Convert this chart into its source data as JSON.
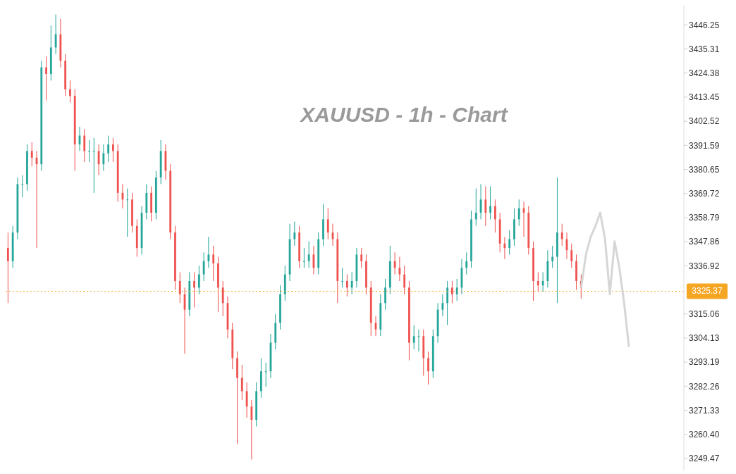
{
  "chart_data": {
    "type": "candlestick",
    "title": "XAUUSD - 1h - Chart",
    "tick_labels": "y",
    "categories": [
      null,
      null,
      null,
      null,
      null,
      null,
      null,
      null,
      null,
      null,
      null,
      null,
      null,
      null,
      null,
      null,
      null,
      null,
      null,
      null,
      null,
      null,
      null,
      null,
      null,
      null,
      null,
      null,
      null,
      null,
      null,
      null,
      null,
      null,
      null,
      null,
      null,
      null,
      null,
      null,
      null,
      null,
      null,
      null,
      null,
      null,
      null,
      null,
      null,
      null,
      null,
      null,
      null,
      null,
      null,
      null,
      null,
      null,
      null,
      null,
      null,
      null,
      null,
      null,
      null,
      null,
      null,
      null,
      null,
      null,
      null,
      null,
      null,
      null,
      null,
      null,
      null,
      null,
      null,
      null,
      null,
      null,
      null,
      null,
      null,
      null,
      null,
      null,
      null,
      null,
      null,
      null,
      null,
      null,
      null,
      null,
      null,
      null,
      null,
      null,
      null,
      null,
      null,
      null,
      null,
      null,
      null,
      null,
      null,
      null,
      null,
      null,
      null,
      null,
      null,
      null,
      null,
      null,
      null,
      null,
      null,
      null,
      null,
      null,
      null,
      null,
      null,
      null,
      null,
      null,
      null,
      null,
      null,
      null,
      null,
      null,
      null,
      null,
      null,
      null,
      null,
      null
    ],
    "series": [
      {
        "type": "candlestick",
        "ohlc": [
          [
            3345,
            3352,
            3320,
            3339
          ],
          [
            3339,
            3355,
            3336,
            3352
          ],
          [
            3352,
            3377,
            3349,
            3374
          ],
          [
            3374,
            3378,
            3368,
            3374
          ],
          [
            3374,
            3392,
            3371,
            3389
          ],
          [
            3389,
            3393,
            3382,
            3386
          ],
          [
            3386,
            3389,
            3345,
            3383
          ],
          [
            3383,
            3430,
            3380,
            3427
          ],
          [
            3427,
            3432,
            3412,
            3424
          ],
          [
            3424,
            3446,
            3421,
            3436
          ],
          [
            3436,
            3451,
            3433,
            3442
          ],
          [
            3442,
            3449,
            3427,
            3430
          ],
          [
            3430,
            3433,
            3414,
            3417
          ],
          [
            3417,
            3421,
            3411,
            3414
          ],
          [
            3414,
            3417,
            3380,
            3392
          ],
          [
            3392,
            3400,
            3389,
            3396
          ],
          [
            3396,
            3399,
            3384,
            3389
          ],
          [
            3389,
            3394,
            3384,
            3389
          ],
          [
            3389,
            3395,
            3370,
            3389
          ],
          [
            3389,
            3392,
            3378,
            3383
          ],
          [
            3383,
            3392,
            3380,
            3388
          ],
          [
            3388,
            3396,
            3384,
            3392
          ],
          [
            3392,
            3395,
            3384,
            3389
          ],
          [
            3389,
            3392,
            3366,
            3370
          ],
          [
            3370,
            3374,
            3363,
            3367
          ],
          [
            3367,
            3372,
            3350,
            3367
          ],
          [
            3367,
            3370,
            3352,
            3355
          ],
          [
            3355,
            3358,
            3341,
            3345
          ],
          [
            3345,
            3364,
            3342,
            3361
          ],
          [
            3361,
            3374,
            3358,
            3370
          ],
          [
            3370,
            3373,
            3357,
            3361
          ],
          [
            3361,
            3380,
            3358,
            3377
          ],
          [
            3377,
            3394,
            3374,
            3389
          ],
          [
            3389,
            3392,
            3376,
            3380
          ],
          [
            3380,
            3383,
            3349,
            3352
          ],
          [
            3352,
            3355,
            3326,
            3330
          ],
          [
            3330,
            3334,
            3320,
            3324
          ],
          [
            3324,
            3327,
            3297,
            3317
          ],
          [
            3317,
            3334,
            3314,
            3330
          ],
          [
            3330,
            3334,
            3318,
            3327
          ],
          [
            3327,
            3337,
            3324,
            3333
          ],
          [
            3333,
            3343,
            3330,
            3339
          ],
          [
            3339,
            3350,
            3336,
            3342
          ],
          [
            3342,
            3346,
            3330,
            3338
          ],
          [
            3338,
            3341,
            3316,
            3327
          ],
          [
            3327,
            3330,
            3314,
            3320
          ],
          [
            3320,
            3323,
            3304,
            3308
          ],
          [
            3308,
            3311,
            3290,
            3295
          ],
          [
            3295,
            3298,
            3256,
            3286
          ],
          [
            3286,
            3292,
            3276,
            3280
          ],
          [
            3280,
            3284,
            3268,
            3273
          ],
          [
            3273,
            3276,
            3249,
            3267
          ],
          [
            3267,
            3284,
            3264,
            3280
          ],
          [
            3280,
            3295,
            3277,
            3289
          ],
          [
            3289,
            3293,
            3282,
            3289
          ],
          [
            3289,
            3306,
            3286,
            3302
          ],
          [
            3302,
            3315,
            3299,
            3311
          ],
          [
            3311,
            3328,
            3308,
            3324
          ],
          [
            3324,
            3337,
            3321,
            3333
          ],
          [
            3333,
            3356,
            3330,
            3349
          ],
          [
            3349,
            3357,
            3346,
            3352
          ],
          [
            3352,
            3355,
            3336,
            3339
          ],
          [
            3339,
            3345,
            3336,
            3339
          ],
          [
            3339,
            3348,
            3336,
            3342
          ],
          [
            3342,
            3346,
            3333,
            3336
          ],
          [
            3336,
            3352,
            3333,
            3349
          ],
          [
            3349,
            3365,
            3346,
            3358
          ],
          [
            3358,
            3363,
            3349,
            3352
          ],
          [
            3352,
            3356,
            3346,
            3349
          ],
          [
            3349,
            3352,
            3320,
            3330
          ],
          [
            3330,
            3336,
            3327,
            3330
          ],
          [
            3330,
            3333,
            3323,
            3327
          ],
          [
            3327,
            3334,
            3324,
            3330
          ],
          [
            3330,
            3345,
            3327,
            3342
          ],
          [
            3342,
            3345,
            3336,
            3339
          ],
          [
            3339,
            3342,
            3324,
            3327
          ],
          [
            3327,
            3330,
            3305,
            3311
          ],
          [
            3311,
            3314,
            3305,
            3308
          ],
          [
            3308,
            3324,
            3305,
            3320
          ],
          [
            3320,
            3331,
            3317,
            3327
          ],
          [
            3327,
            3346,
            3324,
            3339
          ],
          [
            3339,
            3343,
            3333,
            3336
          ],
          [
            3336,
            3341,
            3330,
            3333
          ],
          [
            3333,
            3337,
            3324,
            3327
          ],
          [
            3327,
            3330,
            3294,
            3302
          ],
          [
            3302,
            3310,
            3299,
            3305
          ],
          [
            3305,
            3308,
            3298,
            3305
          ],
          [
            3305,
            3308,
            3287,
            3295
          ],
          [
            3295,
            3298,
            3283,
            3289
          ],
          [
            3289,
            3308,
            3286,
            3305
          ],
          [
            3305,
            3320,
            3302,
            3317
          ],
          [
            3317,
            3324,
            3314,
            3320
          ],
          [
            3320,
            3330,
            3310,
            3327
          ],
          [
            3327,
            3330,
            3320,
            3324
          ],
          [
            3324,
            3331,
            3321,
            3327
          ],
          [
            3327,
            3340,
            3324,
            3336
          ],
          [
            3336,
            3343,
            3333,
            3339
          ],
          [
            3339,
            3362,
            3336,
            3358
          ],
          [
            3358,
            3372,
            3355,
            3361
          ],
          [
            3361,
            3374,
            3358,
            3367
          ],
          [
            3367,
            3373,
            3355,
            3361
          ],
          [
            3361,
            3373,
            3358,
            3364
          ],
          [
            3364,
            3367,
            3352,
            3358
          ],
          [
            3358,
            3361,
            3343,
            3347
          ],
          [
            3347,
            3350,
            3340,
            3345
          ],
          [
            3345,
            3353,
            3342,
            3349
          ],
          [
            3349,
            3363,
            3346,
            3358
          ],
          [
            3358,
            3367,
            3355,
            3363
          ],
          [
            3363,
            3366,
            3350,
            3361
          ],
          [
            3361,
            3364,
            3342,
            3345
          ],
          [
            3345,
            3348,
            3321,
            3330
          ],
          [
            3330,
            3334,
            3325,
            3328
          ],
          [
            3328,
            3334,
            3325,
            3330
          ],
          [
            3330,
            3344,
            3327,
            3339
          ],
          [
            3339,
            3346,
            3336,
            3341
          ],
          [
            3341,
            3377,
            3320,
            3352
          ],
          [
            3352,
            3356,
            3346,
            3349
          ],
          [
            3349,
            3352,
            3340,
            3344
          ],
          [
            3344,
            3347,
            3336,
            3339
          ],
          [
            3339,
            3342,
            3326,
            3330
          ],
          [
            3330,
            3333,
            3322,
            3327
          ],
          null,
          null,
          null,
          null,
          null,
          null,
          null,
          null,
          null,
          null,
          null,
          null,
          null,
          null,
          null,
          null,
          null,
          null,
          null,
          null,
          null
        ],
        "colors": [
          "#ef5350",
          "#26a69a",
          "#26a69a",
          "#26a69a",
          "#26a69a",
          "#ef5350",
          "#ef5350",
          "#26a69a",
          "#ef5350",
          "#26a69a",
          "#26a69a",
          "#ef5350",
          "#ef5350",
          "#ef5350",
          "#ef5350",
          "#26a69a",
          "#ef5350",
          "#26a69a",
          "#26a69a",
          "#ef5350",
          "#26a69a",
          "#26a69a",
          "#ef5350",
          "#ef5350",
          "#ef5350",
          "#26a69a",
          "#ef5350",
          "#ef5350",
          "#26a69a",
          "#26a69a",
          "#ef5350",
          "#26a69a",
          "#26a69a",
          "#ef5350",
          "#ef5350",
          "#ef5350",
          "#ef5350",
          "#ef5350",
          "#26a69a",
          "#ef5350",
          "#26a69a",
          "#26a69a",
          "#26a69a",
          "#ef5350",
          "#ef5350",
          "#ef5350",
          "#ef5350",
          "#ef5350",
          "#ef5350",
          "#ef5350",
          "#ef5350",
          "#ef5350",
          "#26a69a",
          "#26a69a",
          "#26a69a",
          "#26a69a",
          "#26a69a",
          "#26a69a",
          "#26a69a",
          "#26a69a",
          "#26a69a",
          "#ef5350",
          "#26a69a",
          "#26a69a",
          "#ef5350",
          "#26a69a",
          "#26a69a",
          "#ef5350",
          "#ef5350",
          "#ef5350",
          "#26a69a",
          "#ef5350",
          "#26a69a",
          "#26a69a",
          "#ef5350",
          "#ef5350",
          "#ef5350",
          "#ef5350",
          "#26a69a",
          "#26a69a",
          "#26a69a",
          "#ef5350",
          "#ef5350",
          "#ef5350",
          "#ef5350",
          "#26a69a",
          "#26a69a",
          "#ef5350",
          "#ef5350",
          "#26a69a",
          "#26a69a",
          "#26a69a",
          "#26a69a",
          "#ef5350",
          "#26a69a",
          "#26a69a",
          "#26a69a",
          "#26a69a",
          "#26a69a",
          "#26a69a",
          "#ef5350",
          "#26a69a",
          "#ef5350",
          "#ef5350",
          "#ef5350",
          "#26a69a",
          "#26a69a",
          "#26a69a",
          "#ef5350",
          "#ef5350",
          "#ef5350",
          "#ef5350",
          "#26a69a",
          "#26a69a",
          "#26a69a",
          "#26a69a",
          "#ef5350",
          "#ef5350",
          "#ef5350",
          "#ef5350",
          "#ef5350",
          null,
          null,
          null,
          null,
          null,
          null,
          null,
          null,
          null,
          null,
          null,
          null,
          null,
          null,
          null,
          null,
          null,
          null,
          null,
          null,
          null
        ]
      },
      {
        "type": "line",
        "color": "#d6d6d6",
        "values": [
          null,
          null,
          null,
          null,
          null,
          null,
          null,
          null,
          null,
          null,
          null,
          null,
          null,
          null,
          null,
          null,
          null,
          null,
          null,
          null,
          null,
          null,
          null,
          null,
          null,
          null,
          null,
          null,
          null,
          null,
          null,
          null,
          null,
          null,
          null,
          null,
          null,
          null,
          null,
          null,
          null,
          null,
          null,
          null,
          null,
          null,
          null,
          null,
          null,
          null,
          null,
          null,
          null,
          null,
          null,
          null,
          null,
          null,
          null,
          null,
          null,
          null,
          null,
          null,
          null,
          null,
          null,
          null,
          null,
          null,
          null,
          null,
          null,
          null,
          null,
          null,
          null,
          null,
          null,
          null,
          null,
          null,
          null,
          null,
          null,
          null,
          null,
          null,
          null,
          null,
          null,
          null,
          null,
          null,
          null,
          null,
          null,
          null,
          null,
          null,
          null,
          null,
          null,
          null,
          null,
          null,
          null,
          null,
          null,
          null,
          null,
          null,
          null,
          null,
          null,
          null,
          null,
          null,
          null,
          null,
          3327,
          3342,
          3350,
          3355,
          3361,
          3349,
          3324,
          3348,
          3336,
          3320,
          3300,
          null,
          null,
          null,
          null,
          null,
          null,
          null,
          null,
          null,
          null,
          null
        ]
      }
    ],
    "ylim": [
      3244,
      3455
    ],
    "yticks": [
      3446.25,
      3435.31,
      3424.38,
      3413.45,
      3402.52,
      3391.59,
      3380.65,
      3369.72,
      3358.79,
      3347.86,
      3336.92,
      3315.06,
      3304.13,
      3293.19,
      3282.26,
      3271.33,
      {
        "value": 3260.4,
        "label": "3260.40"
      },
      3249.47
    ],
    "ref_lines": [
      {
        "axis": "y",
        "value": 3325.37,
        "label": "3325.37",
        "color": "#f5a623",
        "line_style": "dotted"
      }
    ]
  }
}
